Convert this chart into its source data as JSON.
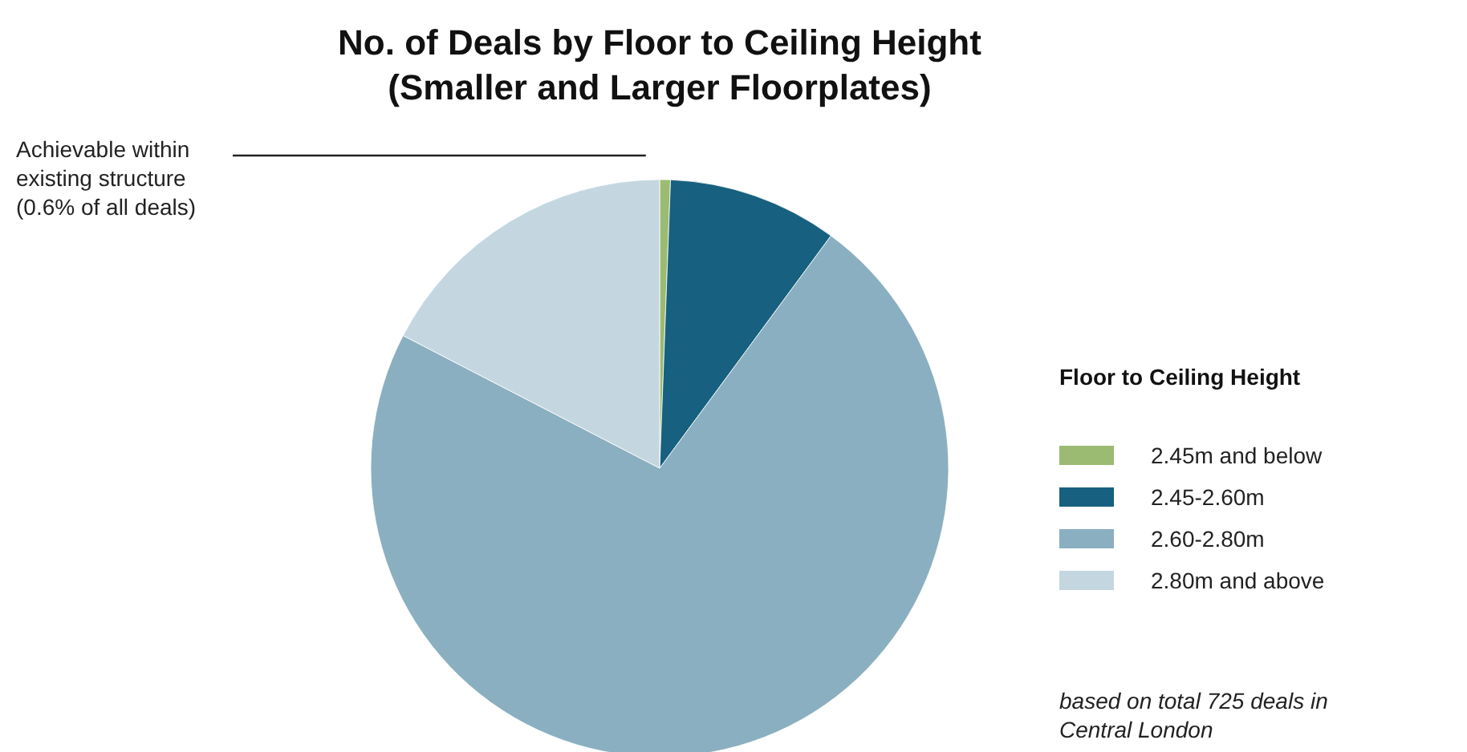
{
  "chart_data": {
    "type": "pie",
    "title": "No. of Deals by Floor to Ceiling Height\n(Smaller and Larger Floorplates)",
    "legend_title": "Floor to Ceiling Height",
    "legend": "right",
    "categories": [
      "2.45m and below",
      "2.45-2.60m",
      "2.60-2.80m",
      "2.80m and above"
    ],
    "values": [
      0.6,
      9.5,
      72.5,
      17.4
    ],
    "colors": [
      "#9bbb72",
      "#17607f",
      "#8aafc0",
      "#c4d7e0"
    ],
    "annotations": [
      "Achievable within existing structure (0.6% of all deals)",
      "based on total 725 deals in Central London"
    ]
  }
}
